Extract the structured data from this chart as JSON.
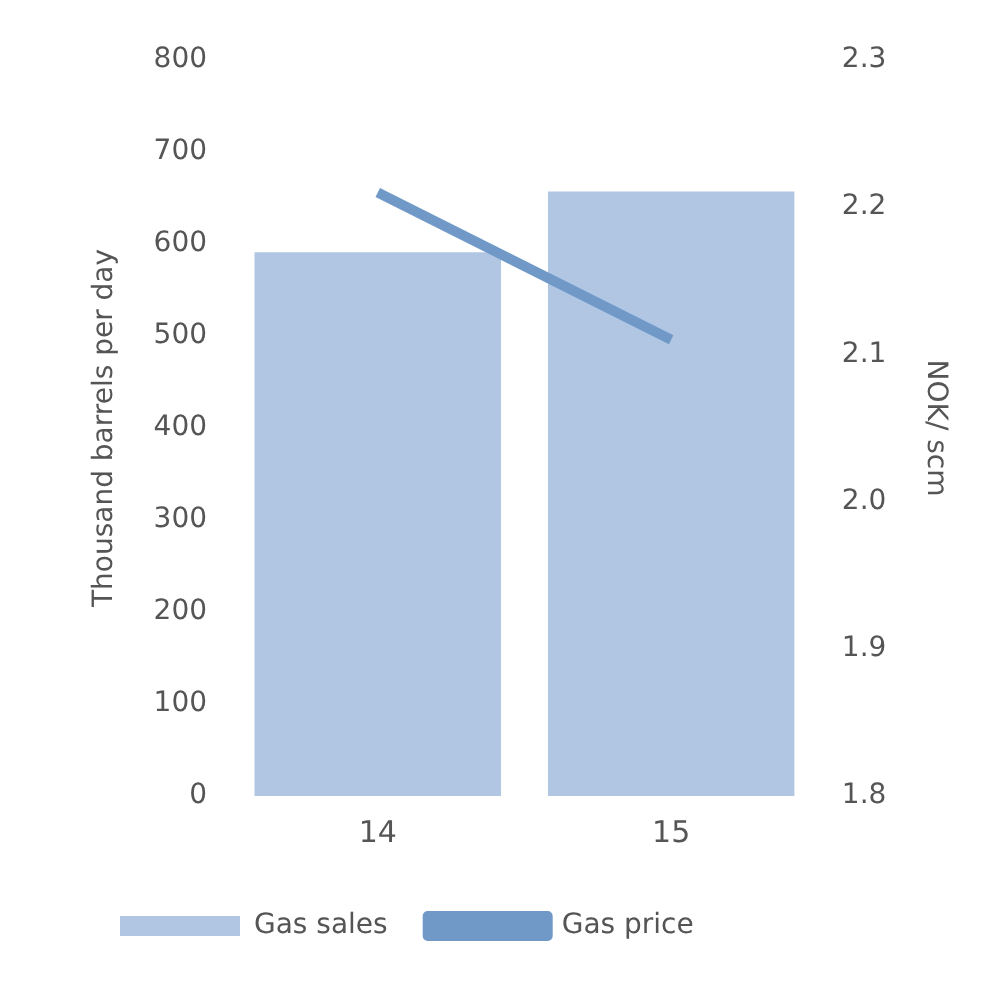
{
  "chart_data": {
    "type": "bar",
    "categories": [
      "14",
      "15"
    ],
    "ylabel": "Thousand barrels per day",
    "y2label": "NOK/ scm",
    "ylim": [
      0,
      800
    ],
    "yticks": [
      0,
      100,
      200,
      300,
      400,
      500,
      600,
      700,
      800
    ],
    "y2lim": [
      1.8,
      2.3
    ],
    "y2ticks": [
      1.8,
      1.9,
      {
        "value": 2.0,
        "label": "2.0"
      },
      2.1,
      2.2,
      2.3
    ],
    "series": [
      {
        "name": "Gas sales",
        "color": "#b0c6e2",
        "values": [
          591,
          657
        ]
      },
      {
        "name": "Gas price",
        "type": "line",
        "axis": "y2",
        "color": "#7099c8",
        "values": [
          2.21,
          2.11
        ]
      }
    ],
    "grid": false,
    "legend": "bottom",
    "marker": "none"
  }
}
